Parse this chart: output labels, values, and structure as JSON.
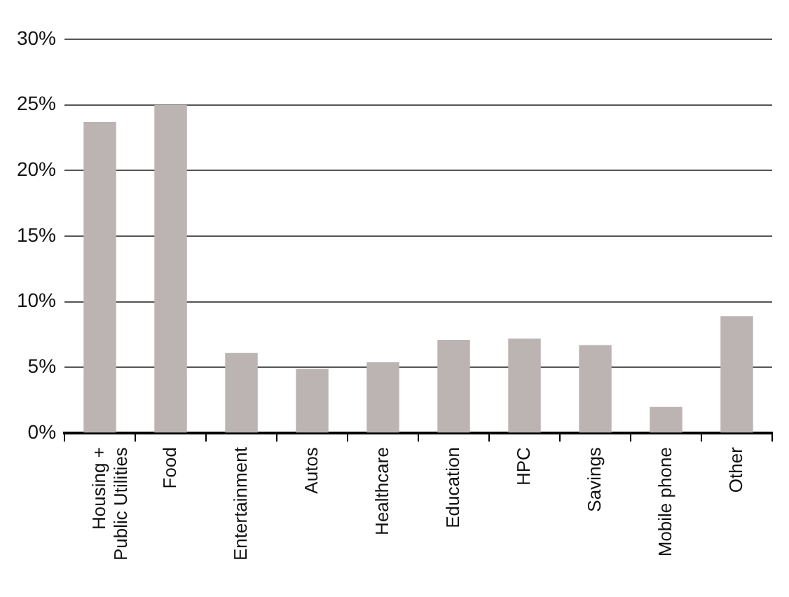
{
  "chart_data": {
    "type": "bar",
    "categories": [
      "Housing +\nPublic Utilities",
      "Food",
      "Entertainment",
      "Autos",
      "Healthcare",
      "Education",
      "HPC",
      "Savings",
      "Mobile phone",
      "Other"
    ],
    "values": [
      23.7,
      25.0,
      6.1,
      4.9,
      5.4,
      7.1,
      7.2,
      6.7,
      2.0,
      8.9
    ],
    "color": "#bbb4b2",
    "ylim": [
      0,
      30
    ],
    "yticks": [
      {
        "value": 0,
        "label": "0%"
      },
      {
        "value": 5,
        "label": "5%"
      },
      {
        "value": 10,
        "label": "10%"
      },
      {
        "value": 15,
        "label": "15%"
      },
      {
        "value": 20,
        "label": "20%"
      },
      {
        "value": 25,
        "label": "25%"
      },
      {
        "value": 30,
        "label": "30%"
      }
    ],
    "grid": "y",
    "legend": false
  }
}
